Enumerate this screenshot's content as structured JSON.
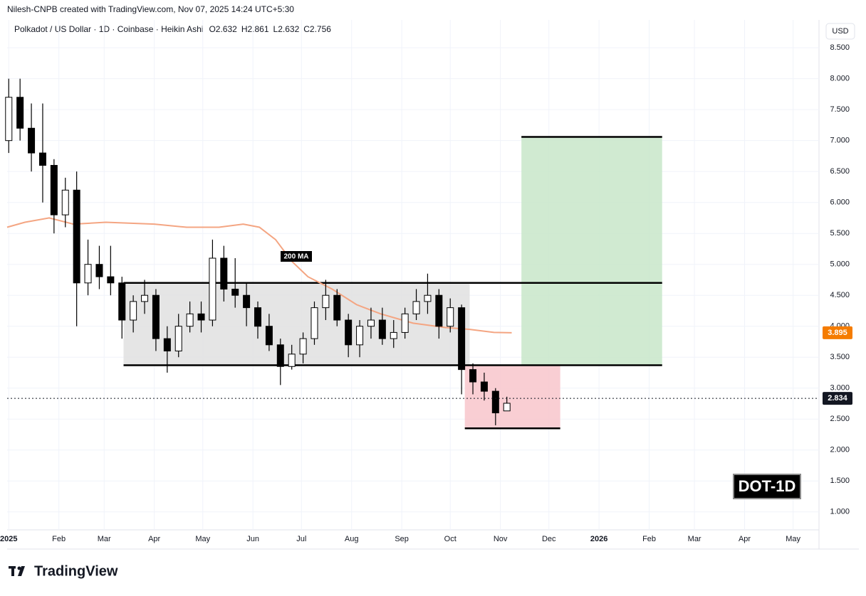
{
  "header": {
    "credit": "Nilesh-CNPB created with TradingView.com, Nov 07, 2025 14:24 UTC+5:30",
    "symbol": "Polkadot / US Dollar · 1D · Coinbase · Heikin Ashi",
    "ohlc": [
      {
        "label": "O",
        "value": 2.632
      },
      {
        "label": "H",
        "value": 2.861
      },
      {
        "label": "L",
        "value": 2.632
      },
      {
        "label": "C",
        "value": 2.756
      }
    ],
    "currency": "USD",
    "tag": "DOT-1D",
    "brand": "TradingView"
  },
  "chart_data": {
    "type": "candlestick",
    "grid": true,
    "xlim": [
      -1,
      501
    ],
    "ylim": [
      0.71,
      8.95
    ],
    "xticks": [
      {
        "value": 0,
        "label": "2025"
      },
      {
        "value": 31,
        "label": "Feb"
      },
      {
        "value": 59,
        "label": "Mar"
      },
      {
        "value": 90,
        "label": "Apr"
      },
      {
        "value": 120,
        "label": "May"
      },
      {
        "value": 151,
        "label": "Jun"
      },
      {
        "value": 181,
        "label": "Jul"
      },
      {
        "value": 212,
        "label": "Aug"
      },
      {
        "value": 243,
        "label": "Sep"
      },
      {
        "value": 273,
        "label": "Oct"
      },
      {
        "value": 304,
        "label": "Nov"
      },
      {
        "value": 334,
        "label": "Dec"
      },
      {
        "value": 365,
        "label": "2026"
      },
      {
        "value": 396,
        "label": "Feb"
      },
      {
        "value": 424,
        "label": "Mar"
      },
      {
        "value": 455,
        "label": "Apr"
      },
      {
        "value": 485,
        "label": "May"
      }
    ],
    "yticks": [
      {
        "value": 1,
        "label": "1.000"
      },
      {
        "value": 1.5,
        "label": "1.500"
      },
      {
        "value": 2,
        "label": "2.000"
      },
      {
        "value": 2.5,
        "label": "2.500"
      },
      {
        "value": 3,
        "label": "3.000"
      },
      {
        "value": 3.5,
        "label": "3.500"
      },
      {
        "value": 4,
        "label": "4.000"
      },
      {
        "value": 4.5,
        "label": "4.500"
      },
      {
        "value": 5,
        "label": "5.000"
      },
      {
        "value": 5.5,
        "label": "5.500"
      },
      {
        "value": 6,
        "label": "6.000"
      },
      {
        "value": 6.5,
        "label": "6.500"
      },
      {
        "value": 7,
        "label": "7.000"
      },
      {
        "value": 7.5,
        "label": "7.500"
      },
      {
        "value": 8,
        "label": "8.000"
      },
      {
        "value": 8.5,
        "label": "8.500"
      }
    ],
    "candles": {
      "x": [
        0,
        7,
        14,
        21,
        28,
        35,
        42,
        49,
        56,
        63,
        70,
        77,
        84,
        91,
        98,
        105,
        112,
        119,
        126,
        133,
        140,
        147,
        154,
        161,
        168,
        175,
        182,
        189,
        196,
        203,
        210,
        217,
        224,
        231,
        238,
        245,
        252,
        259,
        266,
        273,
        280,
        287,
        294,
        301,
        308
      ],
      "open": [
        7.0,
        7.7,
        7.2,
        6.8,
        6.6,
        5.8,
        6.2,
        4.7,
        5.0,
        4.8,
        4.7,
        4.1,
        4.4,
        4.5,
        3.8,
        3.6,
        4.0,
        4.2,
        4.1,
        5.1,
        4.6,
        4.5,
        4.3,
        4.0,
        3.7,
        3.35,
        3.55,
        3.8,
        4.3,
        4.5,
        4.1,
        3.7,
        4.0,
        4.1,
        3.8,
        3.9,
        4.2,
        4.4,
        4.5,
        4.0,
        4.3,
        3.3,
        3.1,
        2.95,
        2.632
      ],
      "high": [
        8.0,
        8.0,
        7.6,
        7.6,
        6.7,
        6.4,
        6.5,
        5.4,
        5.3,
        5.3,
        4.8,
        4.5,
        4.75,
        4.6,
        4.0,
        4.2,
        4.4,
        4.4,
        5.4,
        5.3,
        5.1,
        4.7,
        4.4,
        4.2,
        3.8,
        3.7,
        3.9,
        4.4,
        4.75,
        4.6,
        4.2,
        4.1,
        4.3,
        4.3,
        4.1,
        4.3,
        4.6,
        4.85,
        4.6,
        4.45,
        4.35,
        3.4,
        3.25,
        3.0,
        2.861
      ],
      "low": [
        6.8,
        7.0,
        6.5,
        6.0,
        5.5,
        5.6,
        4.0,
        4.5,
        4.6,
        4.5,
        3.8,
        3.9,
        4.2,
        3.6,
        3.25,
        3.5,
        3.9,
        3.9,
        4.0,
        4.4,
        4.3,
        4.0,
        3.8,
        3.6,
        3.05,
        3.3,
        3.4,
        3.7,
        4.1,
        4.0,
        3.5,
        3.5,
        3.8,
        3.7,
        3.65,
        3.8,
        4.1,
        4.2,
        3.8,
        3.9,
        2.9,
        2.9,
        2.8,
        2.4,
        2.632
      ],
      "close": [
        7.7,
        7.2,
        6.8,
        6.6,
        5.8,
        6.2,
        4.7,
        5.0,
        4.8,
        4.7,
        4.1,
        4.4,
        4.5,
        3.8,
        3.6,
        4.0,
        4.2,
        4.1,
        5.1,
        4.6,
        4.5,
        4.3,
        4.0,
        3.7,
        3.35,
        3.55,
        3.8,
        4.3,
        4.5,
        4.1,
        3.7,
        4.0,
        4.1,
        3.8,
        3.9,
        4.2,
        4.4,
        4.5,
        4.0,
        4.3,
        3.3,
        3.1,
        2.95,
        2.6,
        2.756
      ]
    },
    "ma": {
      "name": "200 MA",
      "color": "#f4a582",
      "x": [
        -1,
        10,
        25,
        40,
        60,
        90,
        110,
        130,
        145,
        155,
        165,
        175,
        185,
        200,
        215,
        230,
        250,
        270,
        285,
        300,
        311
      ],
      "values": [
        5.6,
        5.68,
        5.75,
        5.65,
        5.68,
        5.65,
        5.6,
        5.6,
        5.65,
        5.6,
        5.4,
        5.05,
        4.8,
        4.6,
        4.35,
        4.2,
        4.05,
        3.98,
        3.95,
        3.9,
        3.895
      ]
    },
    "zones": [
      {
        "x": [
          71,
          285
        ],
        "y": [
          3.35,
          4.7
        ],
        "color": "#e0e0e0"
      },
      {
        "x": [
          317,
          404
        ],
        "y": [
          3.37,
          7.06
        ],
        "color": "#c8e6c9"
      },
      {
        "x": [
          282,
          341
        ],
        "y": [
          2.35,
          3.37
        ],
        "color": "#f8c5cb"
      }
    ],
    "levels": [
      {
        "x": [
          71,
          404
        ],
        "y": 4.7
      },
      {
        "x": [
          71,
          404
        ],
        "y": 3.37
      },
      {
        "x": [
          317,
          404
        ],
        "y": 7.06
      },
      {
        "x": [
          282,
          341
        ],
        "y": 2.35
      }
    ],
    "last_price": 2.834,
    "ma_price": 3.895,
    "ma_tag_color": "#f57c00"
  }
}
